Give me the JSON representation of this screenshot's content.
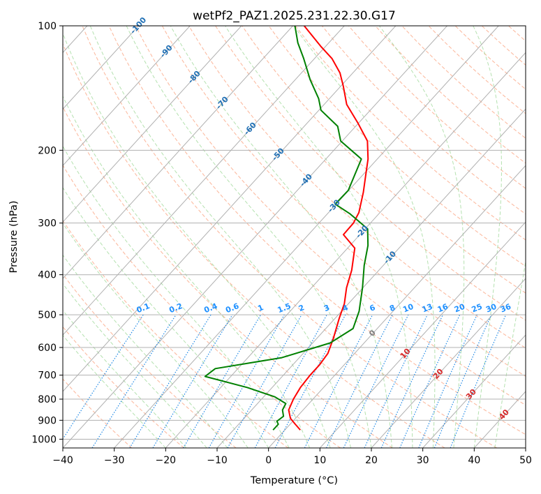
{
  "chart_data": {
    "type": "line",
    "title": "wetPf2_PAZ1.2025.231.22.30.G17",
    "xlabel": "Temperature (°C)",
    "ylabel": "Pressure (hPa)",
    "xlim": [
      -40,
      50
    ],
    "ylim": [
      1050,
      100
    ],
    "y_scale": "log",
    "grid": true,
    "x_ticks": [
      -40,
      -30,
      -20,
      -10,
      0,
      10,
      20,
      30,
      40,
      50
    ],
    "x_tick_labels": [
      "−40",
      "−30",
      "−20",
      "−10",
      "0",
      "10",
      "20",
      "30",
      "40",
      "50"
    ],
    "y_ticks": [
      100,
      200,
      300,
      400,
      500,
      600,
      700,
      800,
      900,
      1000
    ],
    "y_tick_labels": [
      "100",
      "200",
      "300",
      "400",
      "500",
      "600",
      "700",
      "800",
      "900",
      "1000"
    ],
    "isotherm_labels": [
      "-100",
      "-90",
      "-80",
      "-70",
      "-60",
      "-50",
      "-40",
      "-30",
      "-20",
      "-10",
      "0",
      "10",
      "20",
      "30",
      "40"
    ],
    "isotherm_label_values": [
      -100,
      -90,
      -80,
      -70,
      -60,
      -50,
      -40,
      -30,
      -20,
      -10,
      0,
      10,
      20,
      30,
      40
    ],
    "mixing_ratio_labels": [
      "0.1",
      "0.2",
      "0.4",
      "0.6",
      "1",
      "1.5",
      "2",
      "3",
      "4",
      "6",
      "8",
      "10",
      "13",
      "16",
      "20",
      "25",
      "30",
      "36"
    ],
    "mixing_ratio_values": [
      0.1,
      0.2,
      0.4,
      0.6,
      1,
      1.5,
      2,
      3,
      4,
      6,
      8,
      10,
      13,
      16,
      20,
      25,
      30,
      36
    ],
    "series": [
      {
        "color": "#ff0000",
        "x": [
          3.0,
          1.0,
          -1.0,
          -2.8,
          -3.8,
          -4.5,
          -4.8,
          -4.8,
          -5.2,
          -6.8,
          -9.2,
          -10.8,
          -13.2,
          -15.3,
          -18.6,
          -23.2,
          -23.3,
          -24.1,
          -26.8,
          -29.6,
          -31.8,
          -35.1,
          -40.1,
          -45.6,
          -49.5,
          -52.5,
          -56.6,
          -61.0,
          -64.3,
          -67.8
        ],
        "y": [
          950,
          920,
          890,
          850,
          800,
          750,
          700,
          660,
          620,
          570,
          510,
          470,
          430,
          390,
          345,
          320,
          300,
          283,
          253,
          228,
          210,
          190,
          172,
          155,
          140,
          130,
          120,
          112,
          106,
          100
        ]
      },
      {
        "color": "#008000",
        "x": [
          -2.3,
          -2.3,
          -3.1,
          -2.7,
          -4.0,
          -4.5,
          -7.8,
          -14.8,
          -25.0,
          -24.4,
          -13.4,
          -6.6,
          -4.7,
          -6.6,
          -10.1,
          -13.7,
          -16.5,
          -19.5,
          -25.6,
          -30.2,
          -30.1,
          -33.1,
          -40.3,
          -43.5,
          -49.6,
          -52.1,
          -57.1,
          -62.1,
          -66.0,
          -69.6
        ],
        "y": [
          950,
          920,
          905,
          880,
          850,
          820,
          790,
          750,
          705,
          675,
          635,
          585,
          540,
          490,
          430,
          380,
          340,
          310,
          285,
          270,
          250,
          210,
          190,
          175,
          160,
          150,
          135,
          120,
          110,
          100
        ]
      }
    ]
  }
}
